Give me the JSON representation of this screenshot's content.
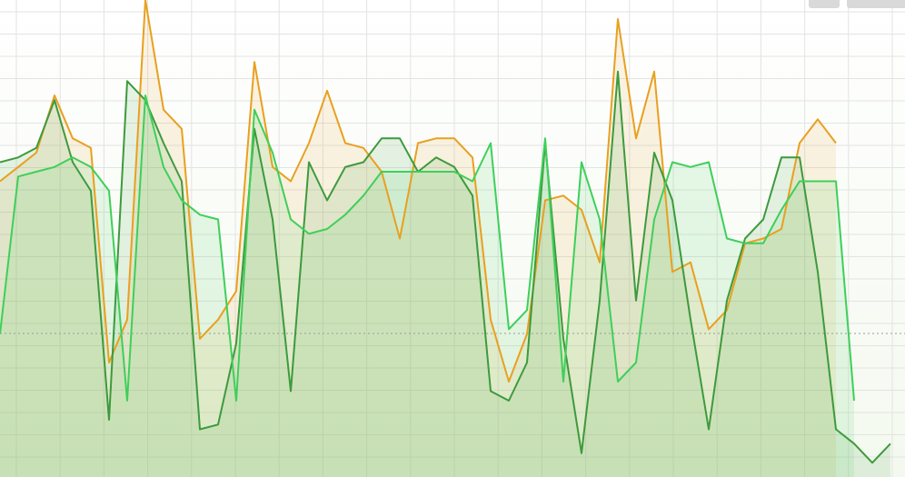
{
  "chart_data": {
    "type": "line",
    "categories": [
      null,
      null,
      null,
      null,
      null,
      null,
      null,
      null,
      null,
      null,
      null,
      null,
      null,
      null,
      null,
      null,
      null,
      null,
      null,
      null,
      null,
      null,
      null,
      null,
      null,
      null,
      null,
      null,
      null,
      null,
      null,
      null,
      null,
      null,
      null,
      null,
      null,
      null,
      null,
      null,
      null,
      null,
      null,
      null,
      null,
      null,
      null,
      null,
      null,
      null
    ],
    "ylim": [
      0,
      100
    ],
    "grid": true,
    "series": [
      {
        "color": "#e8a020",
        "values": [
          62,
          65,
          68,
          80,
          71,
          69,
          24,
          33,
          100,
          77,
          73,
          29,
          33,
          39,
          87,
          65,
          62,
          70,
          81,
          70,
          69,
          64,
          50,
          70,
          71,
          71,
          67,
          33,
          20,
          30,
          58,
          59,
          56,
          45,
          96,
          71,
          85,
          43,
          45,
          31,
          35,
          49,
          50,
          52,
          70,
          75,
          70,
          null,
          null,
          null
        ]
      },
      {
        "color": "#3d9a3d",
        "values": [
          66,
          67,
          69,
          79,
          66,
          60,
          12,
          83,
          79,
          70,
          62,
          10,
          11,
          28,
          73,
          54,
          18,
          66,
          58,
          65,
          66,
          71,
          71,
          64,
          67,
          65,
          59,
          18,
          16,
          24,
          70,
          29,
          5,
          37,
          85,
          37,
          68,
          58,
          33,
          10,
          37,
          50,
          54,
          67,
          67,
          43,
          10,
          7,
          3,
          7
        ]
      },
      {
        "color": "#3ecf5a",
        "values": [
          30,
          63,
          64,
          65,
          67,
          65,
          60,
          16,
          80,
          65,
          58,
          55,
          54,
          16,
          77,
          68,
          54,
          51,
          52,
          55,
          59,
          64,
          64,
          64,
          64,
          64,
          62,
          70,
          31,
          35,
          71,
          20,
          66,
          54,
          20,
          24,
          54,
          66,
          65,
          66,
          50,
          49,
          49,
          56,
          62,
          62,
          62,
          16,
          null,
          null
        ]
      }
    ]
  }
}
